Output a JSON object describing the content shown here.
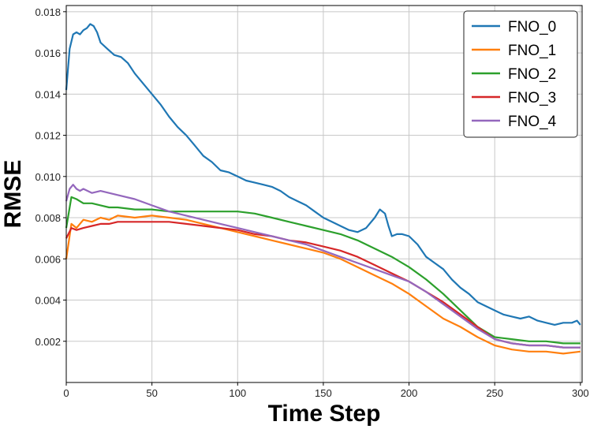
{
  "chart_data": {
    "type": "line",
    "xlabel": "Time Step",
    "ylabel": "RMSE",
    "xlim": [
      0,
      301
    ],
    "ylim": [
      0.0,
      0.0183
    ],
    "xticks": [
      0,
      50,
      100,
      150,
      200,
      250,
      300
    ],
    "yticks": [
      0.002,
      0.004,
      0.006,
      0.008,
      0.01,
      0.012,
      0.014,
      0.016,
      0.018
    ],
    "grid": true,
    "legend_position": "top-right",
    "series": [
      {
        "name": "FNO_0",
        "color": "#1f77b4",
        "x": [
          0,
          2,
          4,
          6,
          8,
          10,
          12,
          14,
          16,
          18,
          20,
          24,
          28,
          32,
          36,
          40,
          45,
          50,
          55,
          60,
          65,
          70,
          75,
          80,
          85,
          90,
          95,
          100,
          105,
          110,
          115,
          120,
          125,
          130,
          135,
          140,
          145,
          150,
          155,
          160,
          165,
          170,
          175,
          180,
          183,
          186,
          188,
          190,
          193,
          196,
          200,
          205,
          210,
          215,
          220,
          225,
          230,
          235,
          240,
          245,
          250,
          255,
          260,
          265,
          270,
          275,
          280,
          285,
          290,
          295,
          298,
          300
        ],
        "y": [
          0.0142,
          0.0162,
          0.0169,
          0.017,
          0.0169,
          0.0171,
          0.0172,
          0.0174,
          0.0173,
          0.017,
          0.0165,
          0.0162,
          0.0159,
          0.0158,
          0.0155,
          0.015,
          0.0145,
          0.014,
          0.0135,
          0.0129,
          0.0124,
          0.012,
          0.0115,
          0.011,
          0.0107,
          0.0103,
          0.0102,
          0.01,
          0.0098,
          0.0097,
          0.0096,
          0.0095,
          0.0093,
          0.009,
          0.0088,
          0.0086,
          0.0083,
          0.008,
          0.0078,
          0.0076,
          0.0074,
          0.0073,
          0.0075,
          0.008,
          0.0084,
          0.0082,
          0.0076,
          0.0071,
          0.0072,
          0.0072,
          0.0071,
          0.0067,
          0.0061,
          0.0058,
          0.0055,
          0.005,
          0.0046,
          0.0043,
          0.0039,
          0.0037,
          0.0035,
          0.0033,
          0.0032,
          0.0031,
          0.0032,
          0.003,
          0.0029,
          0.0028,
          0.0029,
          0.0029,
          0.003,
          0.0028
        ]
      },
      {
        "name": "FNO_1",
        "color": "#ff7f0e",
        "x": [
          0,
          3,
          6,
          10,
          15,
          20,
          25,
          30,
          40,
          50,
          60,
          70,
          80,
          90,
          100,
          110,
          120,
          130,
          140,
          150,
          160,
          170,
          180,
          190,
          200,
          210,
          220,
          230,
          240,
          250,
          260,
          270,
          280,
          290,
          300
        ],
        "y": [
          0.006,
          0.0077,
          0.0075,
          0.0079,
          0.0078,
          0.008,
          0.0079,
          0.0081,
          0.008,
          0.0081,
          0.008,
          0.0079,
          0.0077,
          0.0075,
          0.0073,
          0.0071,
          0.0069,
          0.0067,
          0.0065,
          0.0063,
          0.006,
          0.0056,
          0.0052,
          0.0048,
          0.0043,
          0.0037,
          0.0031,
          0.0027,
          0.0022,
          0.0018,
          0.0016,
          0.0015,
          0.0015,
          0.0014,
          0.0015
        ]
      },
      {
        "name": "FNO_2",
        "color": "#2ca02c",
        "x": [
          0,
          3,
          6,
          10,
          15,
          20,
          25,
          30,
          40,
          50,
          60,
          70,
          80,
          90,
          100,
          110,
          120,
          130,
          140,
          150,
          160,
          170,
          180,
          190,
          200,
          210,
          220,
          230,
          240,
          250,
          260,
          270,
          280,
          290,
          300
        ],
        "y": [
          0.0075,
          0.009,
          0.0089,
          0.0087,
          0.0087,
          0.0086,
          0.0085,
          0.0085,
          0.0084,
          0.0084,
          0.0083,
          0.0083,
          0.0083,
          0.0083,
          0.0083,
          0.0082,
          0.008,
          0.0078,
          0.0076,
          0.0074,
          0.0072,
          0.0069,
          0.0065,
          0.0061,
          0.0056,
          0.005,
          0.0043,
          0.0035,
          0.0027,
          0.0022,
          0.0021,
          0.002,
          0.002,
          0.0019,
          0.0019
        ]
      },
      {
        "name": "FNO_3",
        "color": "#d62728",
        "x": [
          0,
          3,
          6,
          10,
          15,
          20,
          25,
          30,
          40,
          50,
          60,
          70,
          80,
          90,
          100,
          110,
          120,
          130,
          140,
          150,
          160,
          170,
          180,
          190,
          200,
          210,
          220,
          230,
          240,
          250,
          260,
          270,
          280,
          290,
          300
        ],
        "y": [
          0.007,
          0.0075,
          0.0074,
          0.0075,
          0.0076,
          0.0077,
          0.0077,
          0.0078,
          0.0078,
          0.0078,
          0.0078,
          0.0077,
          0.0076,
          0.0075,
          0.0074,
          0.0072,
          0.0071,
          0.0069,
          0.0068,
          0.0066,
          0.0064,
          0.0061,
          0.0057,
          0.0053,
          0.0049,
          0.0044,
          0.0039,
          0.0033,
          0.0027,
          0.0021,
          0.0019,
          0.0018,
          0.0018,
          0.0017,
          0.0017
        ]
      },
      {
        "name": "FNO_4",
        "color": "#9467bd",
        "x": [
          0,
          2,
          4,
          6,
          8,
          10,
          15,
          20,
          25,
          30,
          40,
          50,
          60,
          70,
          80,
          90,
          100,
          110,
          120,
          130,
          140,
          150,
          160,
          170,
          180,
          190,
          200,
          210,
          220,
          230,
          240,
          250,
          260,
          270,
          280,
          290,
          300
        ],
        "y": [
          0.0088,
          0.0094,
          0.0096,
          0.0094,
          0.0093,
          0.0094,
          0.0092,
          0.0093,
          0.0092,
          0.0091,
          0.0089,
          0.0086,
          0.0083,
          0.0081,
          0.0079,
          0.0077,
          0.0075,
          0.0073,
          0.0071,
          0.0069,
          0.0067,
          0.0064,
          0.0061,
          0.0058,
          0.0055,
          0.0052,
          0.0049,
          0.0044,
          0.0038,
          0.0032,
          0.0026,
          0.0021,
          0.0019,
          0.0018,
          0.0018,
          0.0017,
          0.0017
        ]
      }
    ]
  }
}
